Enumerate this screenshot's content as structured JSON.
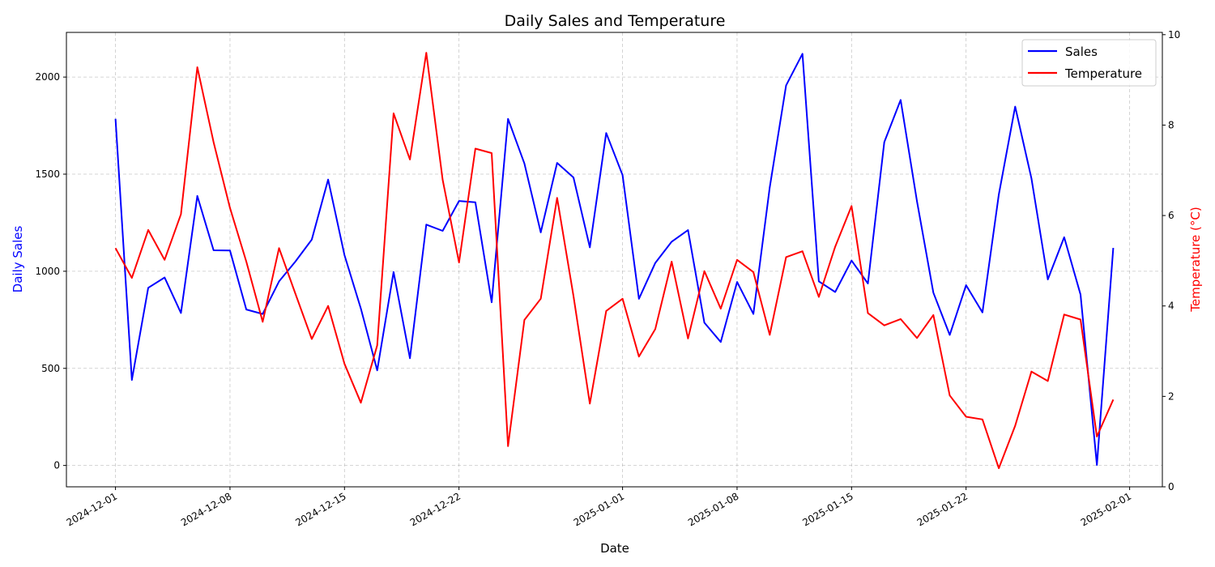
{
  "chart_data": {
    "type": "line",
    "title": "Daily Sales and Temperature",
    "xlabel": "Date",
    "ylabel": "Daily Sales",
    "y2label": "Temperature (°C)",
    "x_start": "2024-12-01",
    "x": [
      "2024-12-01",
      "2024-12-02",
      "2024-12-03",
      "2024-12-04",
      "2024-12-05",
      "2024-12-06",
      "2024-12-07",
      "2024-12-08",
      "2024-12-09",
      "2024-12-10",
      "2024-12-11",
      "2024-12-12",
      "2024-12-13",
      "2024-12-14",
      "2024-12-15",
      "2024-12-16",
      "2024-12-17",
      "2024-12-18",
      "2024-12-19",
      "2024-12-20",
      "2024-12-21",
      "2024-12-22",
      "2024-12-23",
      "2024-12-24",
      "2024-12-25",
      "2024-12-26",
      "2024-12-27",
      "2024-12-28",
      "2024-12-29",
      "2024-12-30",
      "2024-12-31",
      "2025-01-01",
      "2025-01-02",
      "2025-01-03",
      "2025-01-04",
      "2025-01-05",
      "2025-01-06",
      "2025-01-07",
      "2025-01-08",
      "2025-01-09",
      "2025-01-10",
      "2025-01-11",
      "2025-01-12",
      "2025-01-13",
      "2025-01-14",
      "2025-01-15",
      "2025-01-16",
      "2025-01-17",
      "2025-01-18",
      "2025-01-19",
      "2025-01-20",
      "2025-01-21",
      "2025-01-22",
      "2025-01-23",
      "2025-01-24",
      "2025-01-25",
      "2025-01-26",
      "2025-01-27",
      "2025-01-28",
      "2025-01-29",
      "2025-01-30",
      "2025-01-31"
    ],
    "xticks": [
      "2024-12-01",
      "2024-12-08",
      "2024-12-15",
      "2024-12-22",
      "2025-01-01",
      "2025-01-08",
      "2025-01-15",
      "2025-01-22",
      "2025-02-01"
    ],
    "xlim": [
      "2024-11-28",
      "2025-02-03"
    ],
    "ylim": [
      -110,
      2230
    ],
    "yticks": [
      0,
      500,
      1000,
      1500,
      2000
    ],
    "y2lim": [
      0,
      10.05
    ],
    "y2ticks": [
      0,
      2,
      4,
      6,
      8,
      10
    ],
    "grid": true,
    "legend_position": "top-right",
    "series": [
      {
        "name": "Sales",
        "axis": "left",
        "color": "#0000ff",
        "values": [
          1785,
          440,
          915,
          968,
          785,
          1388,
          1108,
          1107,
          803,
          780,
          948,
          1050,
          1163,
          1472,
          1083,
          808,
          490,
          996,
          552,
          1240,
          1208,
          1362,
          1355,
          840,
          1785,
          1555,
          1200,
          1558,
          1483,
          1123,
          1712,
          1495,
          858,
          1043,
          1152,
          1212,
          735,
          636,
          945,
          780,
          1432,
          1957,
          2120,
          948,
          893,
          1055,
          937,
          1665,
          1882,
          1360,
          890,
          672,
          928,
          788,
          1395,
          1848,
          1478,
          958,
          1175,
          880,
          2,
          1120
        ]
      },
      {
        "name": "Temperature",
        "axis": "right",
        "color": "#ff0000",
        "values": [
          5.28,
          4.62,
          5.68,
          5.02,
          6.03,
          9.28,
          7.62,
          6.17,
          4.98,
          3.65,
          5.28,
          4.27,
          3.27,
          4.0,
          2.72,
          1.86,
          3.13,
          8.26,
          7.24,
          9.6,
          6.79,
          4.96,
          7.48,
          7.38,
          0.9,
          3.69,
          4.16,
          6.39,
          4.22,
          1.84,
          3.89,
          4.16,
          2.88,
          3.49,
          4.98,
          3.28,
          4.77,
          3.94,
          5.02,
          4.75,
          3.36,
          5.08,
          5.21,
          4.2,
          5.31,
          6.21,
          3.84,
          3.57,
          3.71,
          3.29,
          3.8,
          2.02,
          1.55,
          1.49,
          0.41,
          1.35,
          2.55,
          2.34,
          3.81,
          3.7,
          1.11,
          1.93
        ]
      }
    ]
  },
  "colors": {
    "left_axis": "#0000ff",
    "right_axis": "#ff0000",
    "grid": "#b0b0b0"
  }
}
